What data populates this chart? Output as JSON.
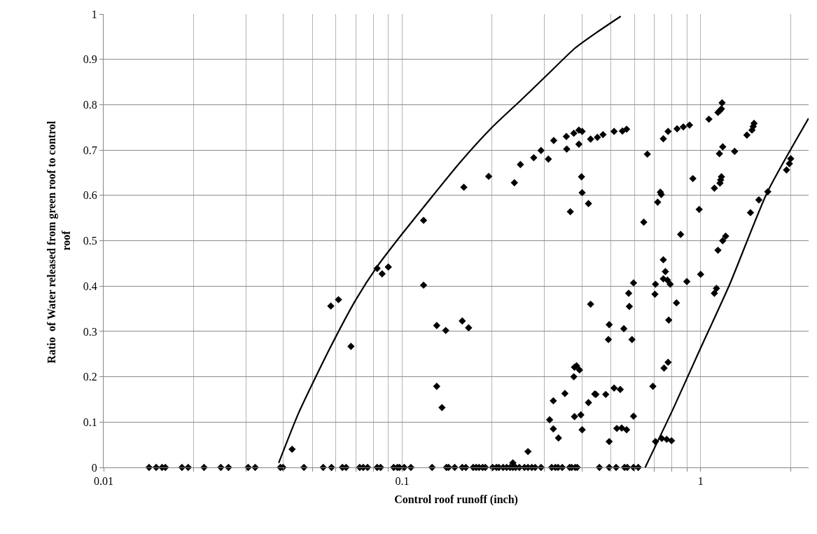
{
  "chart_data": {
    "type": "scatter",
    "xlabel": "Control roof runoff (inch)",
    "ylabel": "Ratio  of Water released from green roof to control roof",
    "log": "x",
    "grid": true,
    "xlim": [
      0.01,
      2.3
    ],
    "xticks": [
      0.01,
      {
        "value": 0.02,
        "label": null
      },
      {
        "value": 0.03,
        "label": null
      },
      {
        "value": 0.04,
        "label": null
      },
      {
        "value": 0.05,
        "label": null
      },
      {
        "value": 0.06,
        "label": null
      },
      {
        "value": 0.07,
        "label": null
      },
      {
        "value": 0.08,
        "label": null
      },
      {
        "value": 0.09,
        "label": null
      },
      0.1,
      {
        "value": 0.2,
        "label": null
      },
      {
        "value": 0.3,
        "label": null
      },
      {
        "value": 0.4,
        "label": null
      },
      {
        "value": 0.5,
        "label": null
      },
      {
        "value": 0.6,
        "label": null
      },
      {
        "value": 0.7,
        "label": null
      },
      {
        "value": 0.8,
        "label": null
      },
      {
        "value": 0.9,
        "label": null
      },
      1,
      {
        "value": 2,
        "label": null
      }
    ],
    "ylim": [
      0,
      1
    ],
    "yticks": [
      0,
      0.1,
      0.2,
      0.3,
      0.4,
      0.5,
      0.6,
      0.7,
      0.8,
      0.9,
      1
    ],
    "series": [
      {
        "color": "#000000",
        "marker": "diamond",
        "x": [
          0.0142,
          0.015,
          0.0157,
          0.0161,
          0.0183,
          0.0192,
          0.0217,
          0.0247,
          0.0262,
          0.0305,
          0.0322,
          0.0391,
          0.0399,
          0.0469,
          0.0544,
          0.058,
          0.0631,
          0.0649,
          0.0721,
          0.0741,
          0.0766,
          0.0825,
          0.0847,
          0.0937,
          0.0964,
          0.098,
          0.1016,
          0.107,
          0.126,
          0.1408,
          0.1431,
          0.15,
          0.159,
          0.1635,
          0.173,
          0.177,
          0.181,
          0.186,
          0.19,
          0.201,
          0.207,
          0.211,
          0.218,
          0.224,
          0.23,
          0.235,
          0.24,
          0.247,
          0.257,
          0.264,
          0.272,
          0.279,
          0.292,
          0.317,
          0.326,
          0.333,
          0.344,
          0.364,
          0.37,
          0.38,
          0.386,
          0.458,
          0.494,
          0.521,
          0.556,
          0.568,
          0.596,
          0.618,
          0.235,
          0.264,
          0.0428,
          0.1306,
          0.136,
          0.312,
          0.321,
          0.321,
          0.334,
          0.351,
          0.376,
          0.378,
          0.384,
          0.393,
          0.378,
          0.397,
          0.401,
          0.421,
          0.442,
          0.446,
          0.481,
          0.494,
          0.513,
          0.538,
          0.524,
          0.544,
          0.565,
          0.596,
          0.692,
          0.706,
          0.741,
          0.77,
          0.799,
          0.754,
          0.778,
          0.0577,
          0.0612,
          0.0674,
          0.0825,
          0.0857,
          0.0899,
          0.118,
          0.118,
          0.1306,
          0.14,
          0.159,
          0.167,
          0.161,
          0.195,
          0.2377,
          0.249,
          0.276,
          0.292,
          0.309,
          0.322,
          0.355,
          0.356,
          0.376,
          0.391,
          0.401,
          0.391,
          0.428,
          0.451,
          0.471,
          0.513,
          0.547,
          0.565,
          0.399,
          0.401,
          0.421,
          0.366,
          0.428,
          0.494,
          0.553,
          0.491,
          0.589,
          0.663,
          0.645,
          0.75,
          0.778,
          0.834,
          0.875,
          0.918,
          0.733,
          0.738,
          0.718,
          0.942,
          0.989,
          0.857,
          0.75,
          0.762,
          0.75,
          0.774,
          0.791,
          0.706,
          0.703,
          0.596,
          0.574,
          0.577,
          0.899,
          1.0,
          0.83,
          0.782,
          1.066,
          1.143,
          1.161,
          1.174,
          1.18,
          1.156,
          1.186,
          1.3,
          1.112,
          1.161,
          1.174,
          1.167,
          1.143,
          1.186,
          1.213,
          1.112,
          1.13,
          1.429,
          1.486,
          1.5,
          1.51,
          1.469,
          1.567,
          1.679,
          1.94,
          1.983,
          2.004
        ],
        "values": [
          0,
          0,
          0,
          0,
          0,
          0,
          0,
          0,
          0,
          0,
          0,
          0,
          0,
          0,
          0,
          0,
          0,
          0,
          0,
          0,
          0,
          0,
          0,
          0,
          0,
          0,
          0,
          0,
          0,
          0,
          0,
          0,
          0,
          0,
          0,
          0,
          0,
          0,
          0,
          0,
          0,
          0,
          0,
          0,
          0,
          0,
          0,
          0,
          0,
          0,
          0,
          0,
          0,
          0,
          0,
          0,
          0,
          0,
          0,
          0,
          0,
          0,
          0,
          0,
          0,
          0,
          0,
          0,
          0.01,
          0.035,
          0.04,
          0.179,
          0.132,
          0.105,
          0.147,
          0.085,
          0.065,
          0.163,
          0.2,
          0.221,
          0.224,
          0.215,
          0.112,
          0.116,
          0.083,
          0.143,
          0.162,
          0.161,
          0.161,
          0.057,
          0.175,
          0.172,
          0.086,
          0.087,
          0.083,
          0.113,
          0.179,
          0.057,
          0.064,
          0.062,
          0.059,
          0.219,
          0.232,
          0.356,
          0.37,
          0.267,
          0.439,
          0.427,
          0.442,
          0.402,
          0.545,
          0.313,
          0.302,
          0.323,
          0.308,
          0.618,
          0.642,
          0.628,
          0.668,
          0.683,
          0.699,
          0.68,
          0.721,
          0.73,
          0.702,
          0.737,
          0.744,
          0.741,
          0.713,
          0.724,
          0.728,
          0.734,
          0.741,
          0.742,
          0.746,
          0.641,
          0.606,
          0.582,
          0.564,
          0.36,
          0.315,
          0.306,
          0.282,
          0.282,
          0.691,
          0.541,
          0.725,
          0.741,
          0.747,
          0.751,
          0.755,
          0.607,
          0.602,
          0.585,
          0.637,
          0.569,
          0.514,
          0.458,
          0.432,
          0.416,
          0.413,
          0.404,
          0.404,
          0.382,
          0.407,
          0.384,
          0.355,
          0.41,
          0.426,
          0.363,
          0.325,
          0.768,
          0.783,
          0.787,
          0.791,
          0.804,
          0.692,
          0.707,
          0.697,
          0.616,
          0.627,
          0.641,
          0.634,
          0.479,
          0.5,
          0.51,
          0.384,
          0.395,
          0.733,
          0.744,
          0.752,
          0.759,
          0.562,
          0.59,
          0.608,
          0.656,
          0.67,
          0.681
        ]
      },
      {
        "type": "line",
        "color": "#000000",
        "marker": "none",
        "line_style": "solid",
        "x": [
          0.0386,
          0.045,
          0.057,
          0.07,
          0.0825,
          0.1,
          0.127,
          0.156,
          0.2,
          0.25,
          0.3,
          0.38,
          0.45,
          0.54
        ],
        "values": [
          0.01,
          0.12,
          0.26,
          0.37,
          0.443,
          0.515,
          0.6,
          0.672,
          0.75,
          0.81,
          0.86,
          0.925,
          0.96,
          0.995
        ]
      },
      {
        "type": "line",
        "color": "#000000",
        "marker": "none",
        "line_style": "solid",
        "x": [
          0.652,
          0.81,
          0.99,
          1.25,
          1.67,
          2.3
        ],
        "values": [
          0,
          0.13,
          0.257,
          0.403,
          0.606,
          0.77
        ]
      }
    ]
  }
}
